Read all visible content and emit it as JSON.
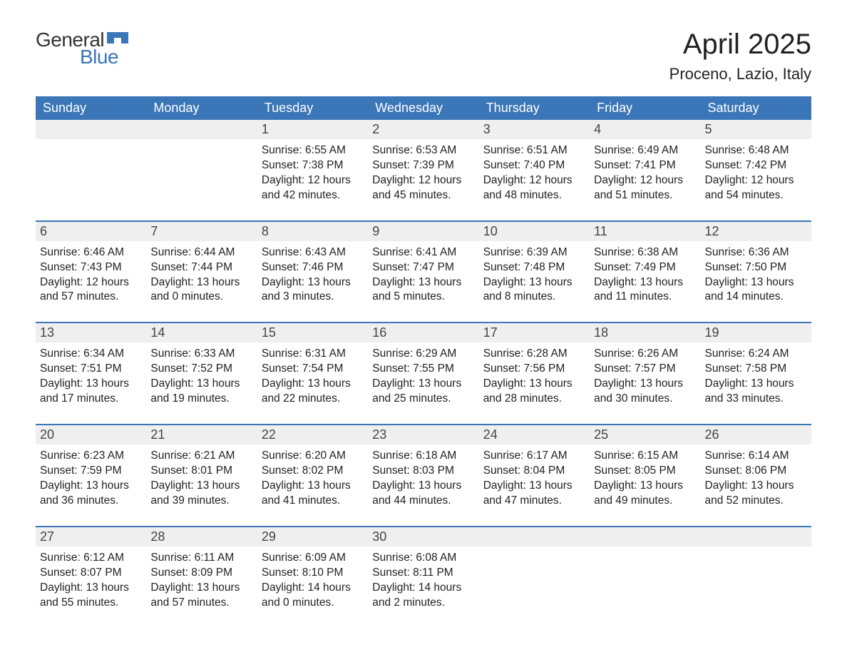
{
  "brand": {
    "g": "General",
    "b": "Blue",
    "shape_color": "#3a76b8"
  },
  "title": "April 2025",
  "location": "Proceno, Lazio, Italy",
  "colors": {
    "header_bg": "#3a76b8",
    "header_fg": "#ffffff",
    "daynum_bg": "#efefef",
    "text": "#222222",
    "border": "#3a76b8"
  },
  "day_names": [
    "Sunday",
    "Monday",
    "Tuesday",
    "Wednesday",
    "Thursday",
    "Friday",
    "Saturday"
  ],
  "weeks": [
    [
      {
        "n": "",
        "lines": []
      },
      {
        "n": "",
        "lines": []
      },
      {
        "n": "1",
        "lines": [
          "Sunrise: 6:55 AM",
          "Sunset: 7:38 PM",
          "Daylight: 12 hours and 42 minutes."
        ]
      },
      {
        "n": "2",
        "lines": [
          "Sunrise: 6:53 AM",
          "Sunset: 7:39 PM",
          "Daylight: 12 hours and 45 minutes."
        ]
      },
      {
        "n": "3",
        "lines": [
          "Sunrise: 6:51 AM",
          "Sunset: 7:40 PM",
          "Daylight: 12 hours and 48 minutes."
        ]
      },
      {
        "n": "4",
        "lines": [
          "Sunrise: 6:49 AM",
          "Sunset: 7:41 PM",
          "Daylight: 12 hours and 51 minutes."
        ]
      },
      {
        "n": "5",
        "lines": [
          "Sunrise: 6:48 AM",
          "Sunset: 7:42 PM",
          "Daylight: 12 hours and 54 minutes."
        ]
      }
    ],
    [
      {
        "n": "6",
        "lines": [
          "Sunrise: 6:46 AM",
          "Sunset: 7:43 PM",
          "Daylight: 12 hours and 57 minutes."
        ]
      },
      {
        "n": "7",
        "lines": [
          "Sunrise: 6:44 AM",
          "Sunset: 7:44 PM",
          "Daylight: 13 hours and 0 minutes."
        ]
      },
      {
        "n": "8",
        "lines": [
          "Sunrise: 6:43 AM",
          "Sunset: 7:46 PM",
          "Daylight: 13 hours and 3 minutes."
        ]
      },
      {
        "n": "9",
        "lines": [
          "Sunrise: 6:41 AM",
          "Sunset: 7:47 PM",
          "Daylight: 13 hours and 5 minutes."
        ]
      },
      {
        "n": "10",
        "lines": [
          "Sunrise: 6:39 AM",
          "Sunset: 7:48 PM",
          "Daylight: 13 hours and 8 minutes."
        ]
      },
      {
        "n": "11",
        "lines": [
          "Sunrise: 6:38 AM",
          "Sunset: 7:49 PM",
          "Daylight: 13 hours and 11 minutes."
        ]
      },
      {
        "n": "12",
        "lines": [
          "Sunrise: 6:36 AM",
          "Sunset: 7:50 PM",
          "Daylight: 13 hours and 14 minutes."
        ]
      }
    ],
    [
      {
        "n": "13",
        "lines": [
          "Sunrise: 6:34 AM",
          "Sunset: 7:51 PM",
          "Daylight: 13 hours and 17 minutes."
        ]
      },
      {
        "n": "14",
        "lines": [
          "Sunrise: 6:33 AM",
          "Sunset: 7:52 PM",
          "Daylight: 13 hours and 19 minutes."
        ]
      },
      {
        "n": "15",
        "lines": [
          "Sunrise: 6:31 AM",
          "Sunset: 7:54 PM",
          "Daylight: 13 hours and 22 minutes."
        ]
      },
      {
        "n": "16",
        "lines": [
          "Sunrise: 6:29 AM",
          "Sunset: 7:55 PM",
          "Daylight: 13 hours and 25 minutes."
        ]
      },
      {
        "n": "17",
        "lines": [
          "Sunrise: 6:28 AM",
          "Sunset: 7:56 PM",
          "Daylight: 13 hours and 28 minutes."
        ]
      },
      {
        "n": "18",
        "lines": [
          "Sunrise: 6:26 AM",
          "Sunset: 7:57 PM",
          "Daylight: 13 hours and 30 minutes."
        ]
      },
      {
        "n": "19",
        "lines": [
          "Sunrise: 6:24 AM",
          "Sunset: 7:58 PM",
          "Daylight: 13 hours and 33 minutes."
        ]
      }
    ],
    [
      {
        "n": "20",
        "lines": [
          "Sunrise: 6:23 AM",
          "Sunset: 7:59 PM",
          "Daylight: 13 hours and 36 minutes."
        ]
      },
      {
        "n": "21",
        "lines": [
          "Sunrise: 6:21 AM",
          "Sunset: 8:01 PM",
          "Daylight: 13 hours and 39 minutes."
        ]
      },
      {
        "n": "22",
        "lines": [
          "Sunrise: 6:20 AM",
          "Sunset: 8:02 PM",
          "Daylight: 13 hours and 41 minutes."
        ]
      },
      {
        "n": "23",
        "lines": [
          "Sunrise: 6:18 AM",
          "Sunset: 8:03 PM",
          "Daylight: 13 hours and 44 minutes."
        ]
      },
      {
        "n": "24",
        "lines": [
          "Sunrise: 6:17 AM",
          "Sunset: 8:04 PM",
          "Daylight: 13 hours and 47 minutes."
        ]
      },
      {
        "n": "25",
        "lines": [
          "Sunrise: 6:15 AM",
          "Sunset: 8:05 PM",
          "Daylight: 13 hours and 49 minutes."
        ]
      },
      {
        "n": "26",
        "lines": [
          "Sunrise: 6:14 AM",
          "Sunset: 8:06 PM",
          "Daylight: 13 hours and 52 minutes."
        ]
      }
    ],
    [
      {
        "n": "27",
        "lines": [
          "Sunrise: 6:12 AM",
          "Sunset: 8:07 PM",
          "Daylight: 13 hours and 55 minutes."
        ]
      },
      {
        "n": "28",
        "lines": [
          "Sunrise: 6:11 AM",
          "Sunset: 8:09 PM",
          "Daylight: 13 hours and 57 minutes."
        ]
      },
      {
        "n": "29",
        "lines": [
          "Sunrise: 6:09 AM",
          "Sunset: 8:10 PM",
          "Daylight: 14 hours and 0 minutes."
        ]
      },
      {
        "n": "30",
        "lines": [
          "Sunrise: 6:08 AM",
          "Sunset: 8:11 PM",
          "Daylight: 14 hours and 2 minutes."
        ]
      },
      {
        "n": "",
        "lines": []
      },
      {
        "n": "",
        "lines": []
      },
      {
        "n": "",
        "lines": []
      }
    ]
  ]
}
